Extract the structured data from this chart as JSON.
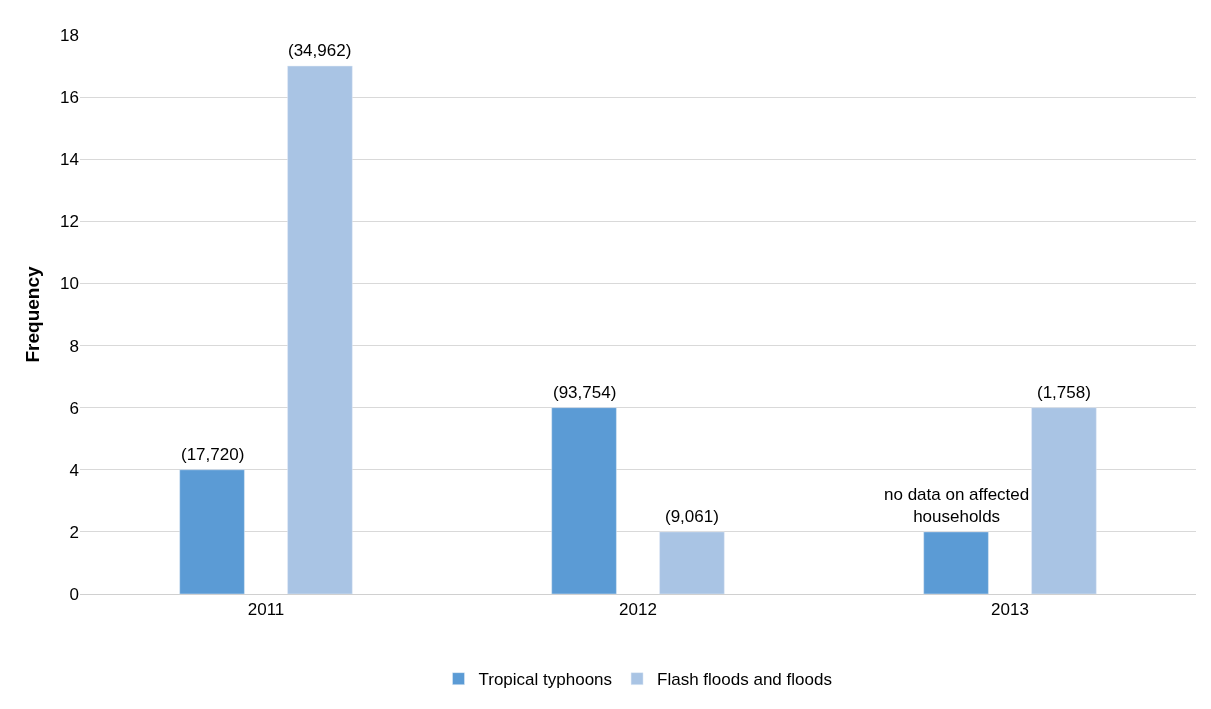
{
  "chart_data": {
    "type": "bar",
    "ylabel": "Frequency",
    "categories": [
      "2011",
      "2012",
      "2013"
    ],
    "series": [
      {
        "name": "Tropical typhoons",
        "color": "#5b9bd5",
        "values": [
          4,
          6,
          2
        ]
      },
      {
        "name": "Flash floods and floods",
        "color": "#a9c4e4",
        "values": [
          17,
          2,
          6
        ]
      }
    ],
    "annotations": [
      "(17,720)",
      "(34,962)",
      "(93,754)",
      "(9,061)",
      "no data on affected households",
      "(1,758)"
    ],
    "ylim": [
      0,
      18
    ],
    "yticks": [
      0,
      2,
      4,
      6,
      8,
      10,
      12,
      14,
      16,
      18
    ],
    "grid": "y",
    "legend": "bottom"
  }
}
